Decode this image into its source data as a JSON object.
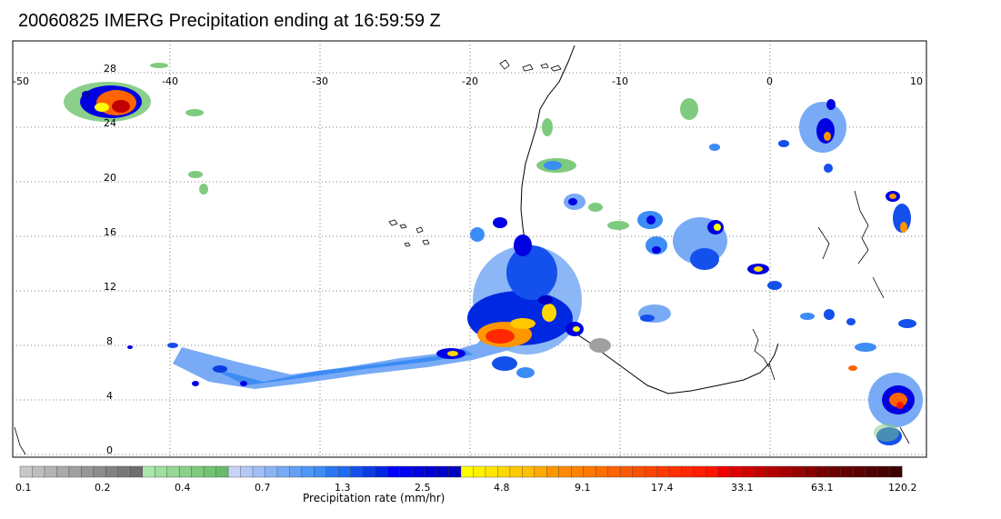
{
  "title": "20060825 IMERG Precipitation ending at 16:59:59 Z",
  "map": {
    "lon_labels": [
      "-50",
      "-40",
      "-30",
      "-20",
      "-10",
      "0",
      "10"
    ],
    "lat_labels": [
      "28",
      "24",
      "20",
      "16",
      "12",
      "8",
      "4",
      "0"
    ]
  },
  "legend": {
    "unit_label": "Precipitation rate (mm/hr)",
    "tick_labels": [
      "0.1",
      "0.2",
      "0.4",
      "0.7",
      "1.3",
      "2.5",
      "4.8",
      "9.1",
      "17.4",
      "33.1",
      "63.1",
      "120.2"
    ],
    "colors": [
      "#c8c8c8",
      "#bebebe",
      "#b4b4b4",
      "#aaaaaa",
      "#a0a0a0",
      "#969696",
      "#8c8c8c",
      "#828282",
      "#787878",
      "#6e6e6e",
      "#aae6aa",
      "#9fdf9f",
      "#94d894",
      "#89d189",
      "#7eca7e",
      "#73c373",
      "#68bc68",
      "#c8d2f5",
      "#b4c8f5",
      "#a0bef5",
      "#8cb4f5",
      "#78aaf5",
      "#64a0f5",
      "#5096f5",
      "#3c8cf5",
      "#2878f5",
      "#1e6af0",
      "#1450eb",
      "#0a3ce6",
      "#0028e1",
      "#0000ff",
      "#0000f0",
      "#0000e1",
      "#0000d2",
      "#0000c8",
      "#0000be",
      "#ffff00",
      "#fff000",
      "#ffe600",
      "#ffd700",
      "#ffc800",
      "#ffbe00",
      "#ffaa00",
      "#ff9600",
      "#ff8c00",
      "#ff8200",
      "#ff7800",
      "#ff6e00",
      "#ff6400",
      "#ff5a00",
      "#ff5000",
      "#ff4600",
      "#ff3c00",
      "#ff3200",
      "#ff2800",
      "#ff1e00",
      "#ff1400",
      "#f00000",
      "#e10000",
      "#d20000",
      "#c30000",
      "#b40000",
      "#a50000",
      "#960000",
      "#870000",
      "#780000",
      "#6e0000",
      "#640000",
      "#5a0000",
      "#500000",
      "#460000",
      "#3c0000"
    ]
  }
}
